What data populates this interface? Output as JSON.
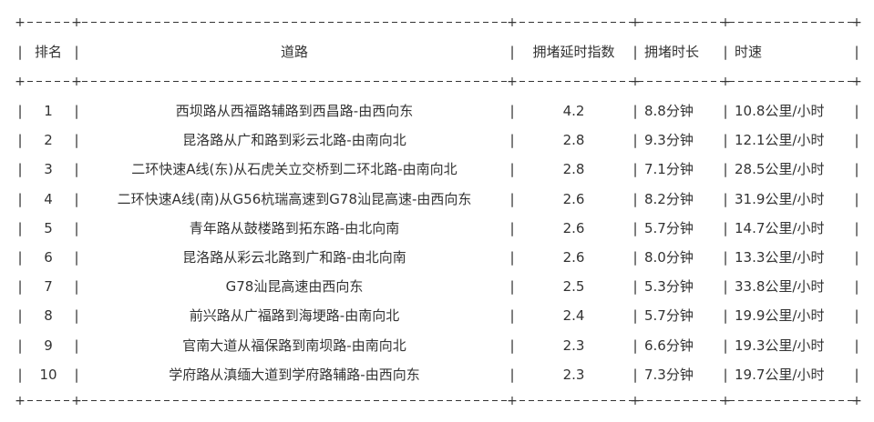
{
  "table": {
    "headers": [
      "排名",
      "道路",
      "拥堵延时指数",
      "拥堵时长",
      "时速"
    ],
    "rows": [
      [
        "1",
        "西坝路从西福路辅路到西昌路-由西向东",
        "4.2",
        "8.8分钟",
        "10.8公里/小时"
      ],
      [
        "2",
        "昆洛路从广和路到彩云北路-由南向北",
        "2.8",
        "9.3分钟",
        "12.1公里/小时"
      ],
      [
        "3",
        "二环快速A线(东)从石虎关立交桥到二环北路-由南向北",
        "2.8",
        "7.1分钟",
        "28.5公里/小时"
      ],
      [
        "4",
        "二环快速A线(南)从G56杭瑞高速到G78汕昆高速-由西向东",
        "2.6",
        "8.2分钟",
        "31.9公里/小时"
      ],
      [
        "5",
        "青年路从鼓楼路到拓东路-由北向南",
        "2.6",
        "5.7分钟",
        "14.7公里/小时"
      ],
      [
        "6",
        "昆洛路从彩云北路到广和路-由北向南",
        "2.6",
        "8.0分钟",
        "13.3公里/小时"
      ],
      [
        "7",
        "G78汕昆高速由西向东",
        "2.5",
        "5.3分钟",
        "33.8公里/小时"
      ],
      [
        "8",
        "前兴路从广福路到海埂路-由南向北",
        "2.4",
        "5.7分钟",
        "19.9公里/小时"
      ],
      [
        "9",
        "官南大道从福保路到南坝路-由南向北",
        "2.3",
        "6.6分钟",
        "19.3公里/小时"
      ],
      [
        "10",
        "学府路从滇缅大道到学府路辅路-由西向东",
        "2.3",
        "7.3分钟",
        "19.7公里/小时"
      ]
    ]
  }
}
